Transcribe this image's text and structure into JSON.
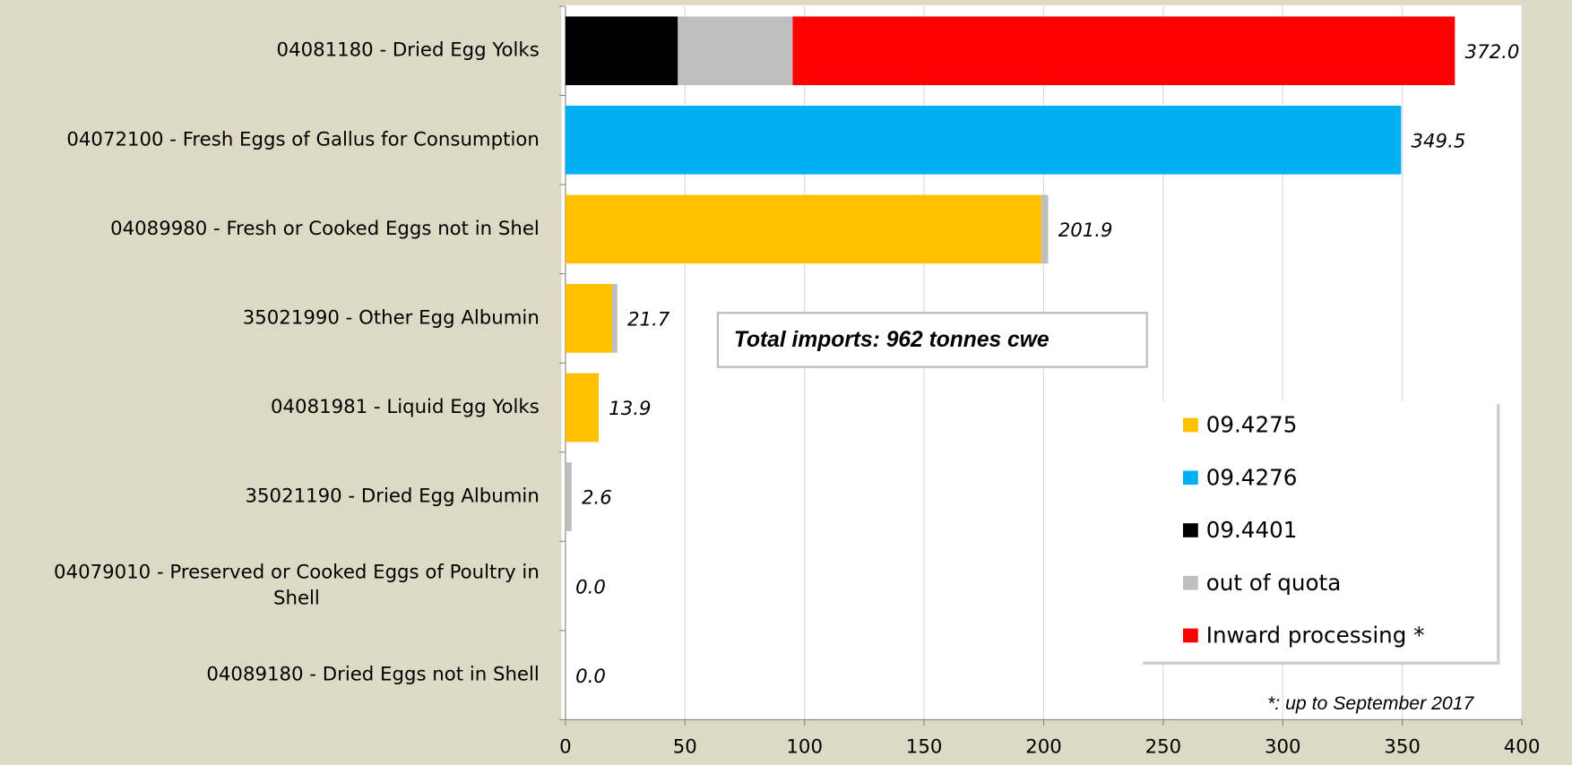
{
  "chart_data": {
    "type": "stacked-barh",
    "categories": [
      "04081180 - Dried Egg Yolks",
      "04072100 - Fresh Eggs of Gallus for Consumption",
      "04089980 - Fresh or Cooked Eggs not in Shel",
      "35021990 - Other Egg Albumin",
      "04081981 - Liquid Egg Yolks",
      "35021190 - Dried Egg Albumin",
      "04079010 - Preserved or Cooked Eggs of Poultry in Shell",
      "04089180 - Dried Eggs not in Shell"
    ],
    "series": [
      {
        "name": "09.4275",
        "color": "#ffc000",
        "values": [
          0,
          0,
          199,
          19.5,
          13.9,
          0,
          0,
          0
        ]
      },
      {
        "name": "09.4276",
        "color": "#00b0f0",
        "values": [
          0,
          349.5,
          0,
          0,
          0,
          0,
          0,
          0
        ]
      },
      {
        "name": "09.4401",
        "color": "#000000",
        "values": [
          47,
          0,
          0,
          0,
          0,
          0,
          0,
          0
        ]
      },
      {
        "name": "out of quota",
        "color": "#bfbfbf",
        "values": [
          48,
          0,
          2.9,
          2.2,
          0,
          2.6,
          0,
          0
        ]
      },
      {
        "name": "Inward processing *",
        "color": "#ff0000",
        "values": [
          277,
          0,
          0,
          0,
          0,
          0,
          0,
          0
        ]
      }
    ],
    "totals": [
      372.0,
      349.5,
      201.9,
      21.7,
      13.9,
      2.6,
      0,
      0
    ],
    "total_labels": [
      "372.0",
      "349.5",
      "201.9",
      "21.7",
      "13.9",
      "2.6",
      "0.0",
      "0.0"
    ],
    "xlim": [
      0,
      400
    ],
    "xticks": [
      0,
      50,
      100,
      150,
      200,
      250,
      300,
      350,
      400
    ],
    "grid": true,
    "legend": "right",
    "annotation": "Total imports: 962 tonnes cwe",
    "footnote": "*: up to September 2017"
  }
}
